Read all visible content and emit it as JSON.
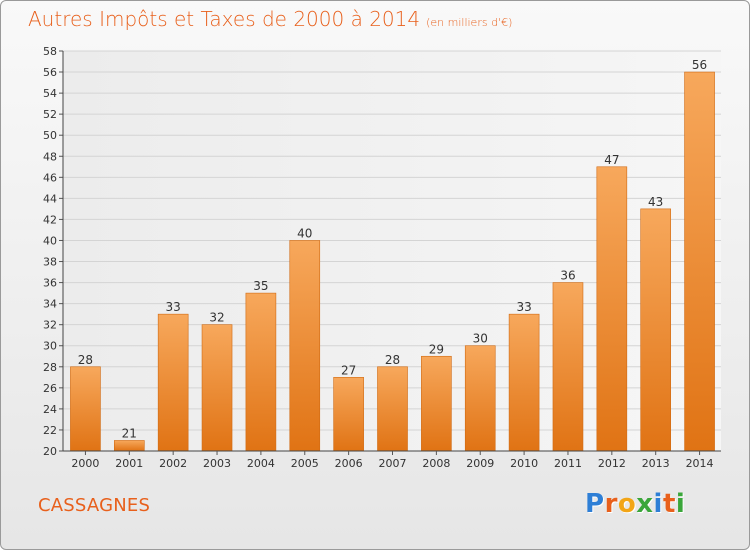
{
  "header": {
    "title": "Autres Impôts et Taxes de 2000 à 2014",
    "subtitle": "(en milliers d'€)"
  },
  "footer": {
    "commune": "CASSAGNES",
    "logo_text": "Proxiti",
    "logo_letters": [
      {
        "ch": "P",
        "color": "#2e7fd6"
      },
      {
        "ch": "r",
        "color": "#e8601c"
      },
      {
        "ch": "o",
        "color": "#f2a516"
      },
      {
        "ch": "x",
        "color": "#3aa63a"
      },
      {
        "ch": "i",
        "color": "#2e7fd6"
      },
      {
        "ch": "t",
        "color": "#e8601c"
      },
      {
        "ch": "i",
        "color": "#3aa63a"
      }
    ]
  },
  "colors": {
    "accent": "#e8601c",
    "bar_light": "#f7a85c",
    "bar_dark": "#e07314",
    "grid": "#d4d4d4"
  },
  "chart_data": {
    "type": "bar",
    "categories": [
      "2000",
      "2001",
      "2002",
      "2003",
      "2004",
      "2005",
      "2006",
      "2007",
      "2008",
      "2009",
      "2010",
      "2011",
      "2012",
      "2013",
      "2014"
    ],
    "values": [
      28,
      21,
      33,
      32,
      35,
      40,
      27,
      28,
      29,
      30,
      33,
      36,
      47,
      43,
      56
    ],
    "ylim": [
      20,
      58
    ],
    "ytick_step": 2,
    "grid": true,
    "data_labels": true
  }
}
